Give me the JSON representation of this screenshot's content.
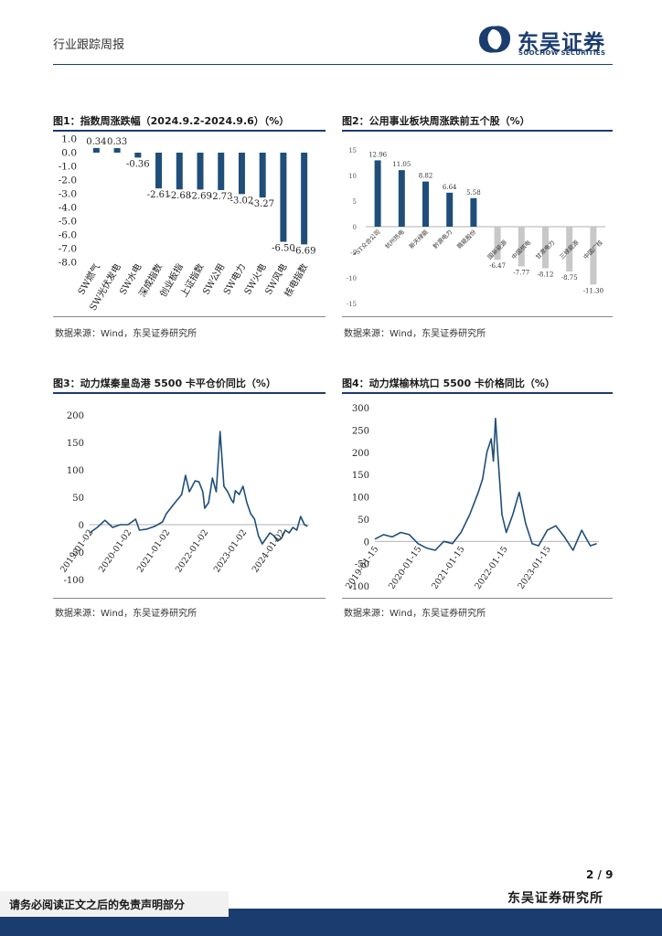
{
  "header": {
    "report_type": "行业跟踪周报",
    "logo_cn": "东吴证券",
    "logo_en": "SOOCHOW SECURITIES"
  },
  "figures": {
    "fig1": {
      "title": "图1：指数周涨跌幅（2024.9.2-2024.9.6）（%）",
      "source": "数据来源：Wind，东吴证券研究所"
    },
    "fig2": {
      "title": "图2：公用事业板块周涨跌前五个股（%）",
      "source": "数据来源：Wind，东吴证券研究所"
    },
    "fig3": {
      "title": "图3：动力煤秦皇岛港 5500 卡平仓价同比（%）",
      "source": "数据来源：Wind，东吴证券研究所"
    },
    "fig4": {
      "title": "图4：动力煤榆林坑口 5500 卡价格同比（%）",
      "source": "数据来源：Wind，东吴证券研究所"
    }
  },
  "chart_data": [
    {
      "id": "fig1",
      "type": "bar",
      "title": "指数周涨跌幅（2024.9.2-2024.9.6）（%）",
      "categories": [
        "SW燃气",
        "SW光伏发电",
        "SW水电",
        "深成指数",
        "创业板指",
        "上证指数",
        "SW公用",
        "SW电力",
        "SW火电",
        "SW风电",
        "核电指数"
      ],
      "values": [
        0.34,
        0.33,
        -0.36,
        -2.61,
        -2.68,
        -2.69,
        -2.73,
        -3.02,
        -3.27,
        -6.5,
        -6.69
      ],
      "labels": [
        "0.34",
        "0.33",
        "-0.36",
        "-2.61",
        "-2.68",
        "-2.69",
        "-2.73",
        "-3.02",
        "-3.27",
        "-6.50",
        "-6.69"
      ],
      "yticks": [
        "1.0",
        "0.0",
        "-1.0",
        "-2.0",
        "-3.0",
        "-4.0",
        "-5.0",
        "-6.0",
        "-7.0",
        "-8.0"
      ],
      "ylim": [
        -8,
        1
      ],
      "color": "#1f4e79"
    },
    {
      "id": "fig2",
      "type": "bar",
      "title": "公用事业板块周涨跌前五个股（%）",
      "categories": [
        "*ST众合公司",
        "杭州热电",
        "新天绿能",
        "黔源电力",
        "赣能股份",
        "国新能源",
        "中国核电",
        "甘肃电力",
        "三峡能源",
        "中国广核"
      ],
      "values": [
        12.96,
        11.05,
        8.82,
        6.64,
        5.58,
        -6.47,
        -7.77,
        -8.12,
        -8.75,
        -11.3
      ],
      "labels": [
        "12.96",
        "11.05",
        "8.82",
        "6.64",
        "5.58",
        "-6.47",
        "-7.77",
        "-8.12",
        "-8.75",
        "-11.30"
      ],
      "yticks": [
        "15",
        "10",
        "5",
        "0",
        "-5",
        "-10",
        "-15"
      ],
      "ylim": [
        -15,
        15
      ],
      "pos_color": "#1f4e79",
      "neg_color": "#c8c8c8"
    },
    {
      "id": "fig3",
      "type": "line",
      "title": "动力煤秦皇岛港 5500 卡平仓价同比（%）",
      "xticks": [
        "2019-01-02",
        "2020-01-02",
        "2021-01-02",
        "2022-01-02",
        "2023-01-02",
        "2024-01-02"
      ],
      "yticks": [
        "200",
        "150",
        "100",
        "50",
        "0",
        "-50",
        "-100"
      ],
      "ylim": [
        -100,
        200
      ],
      "x": [
        2019.0,
        2019.2,
        2019.4,
        2019.6,
        2019.8,
        2020.0,
        2020.2,
        2020.3,
        2020.5,
        2020.7,
        2020.9,
        2021.0,
        2021.2,
        2021.4,
        2021.5,
        2021.6,
        2021.75,
        2021.85,
        2021.95,
        2022.0,
        2022.1,
        2022.2,
        2022.3,
        2022.4,
        2022.5,
        2022.6,
        2022.7,
        2022.75,
        2022.8,
        2022.9,
        2023.0,
        2023.1,
        2023.2,
        2023.3,
        2023.4,
        2023.5,
        2023.6,
        2023.7,
        2023.8,
        2023.9,
        2024.0,
        2024.1,
        2024.2,
        2024.3,
        2024.4,
        2024.5,
        2024.6,
        2024.68
      ],
      "y": [
        -15,
        -5,
        8,
        -5,
        0,
        0,
        10,
        -10,
        -8,
        -3,
        5,
        20,
        38,
        55,
        90,
        60,
        80,
        78,
        60,
        30,
        40,
        85,
        60,
        170,
        70,
        60,
        45,
        40,
        62,
        55,
        70,
        40,
        20,
        10,
        -20,
        -35,
        -25,
        -15,
        -20,
        -30,
        -25,
        -10,
        -15,
        -5,
        -10,
        15,
        0,
        -3
      ],
      "color": "#1f4e79"
    },
    {
      "id": "fig4",
      "type": "line",
      "title": "动力煤榆林坑口 5500 卡价格同比（%）",
      "xticks": [
        "2019-01-15",
        "2020-01-15",
        "2021-01-15",
        "2022-01-15",
        "2023-01-15"
      ],
      "yticks": [
        "300",
        "250",
        "200",
        "150",
        "100",
        "50",
        "0",
        "-50",
        "-100"
      ],
      "ylim": [
        -100,
        300
      ],
      "x": [
        2019.0,
        2019.2,
        2019.4,
        2019.6,
        2019.8,
        2020.0,
        2020.2,
        2020.4,
        2020.6,
        2020.8,
        2021.0,
        2021.2,
        2021.4,
        2021.5,
        2021.6,
        2021.7,
        2021.75,
        2021.8,
        2021.85,
        2021.95,
        2022.05,
        2022.2,
        2022.35,
        2022.5,
        2022.65,
        2022.8,
        2023.0,
        2023.2,
        2023.4,
        2023.6,
        2023.8,
        2024.0,
        2024.15
      ],
      "y": [
        5,
        15,
        10,
        20,
        15,
        -5,
        -15,
        -20,
        0,
        -5,
        20,
        60,
        110,
        140,
        200,
        230,
        180,
        276,
        200,
        60,
        20,
        60,
        110,
        40,
        -5,
        -10,
        25,
        35,
        10,
        -20,
        25,
        -10,
        -5
      ],
      "color": "#1f4e79"
    }
  ],
  "footer": {
    "page": "2 / 9",
    "institute": "东吴证券研究所",
    "disclaimer": "请务必阅读正文之后的免责声明部分"
  }
}
